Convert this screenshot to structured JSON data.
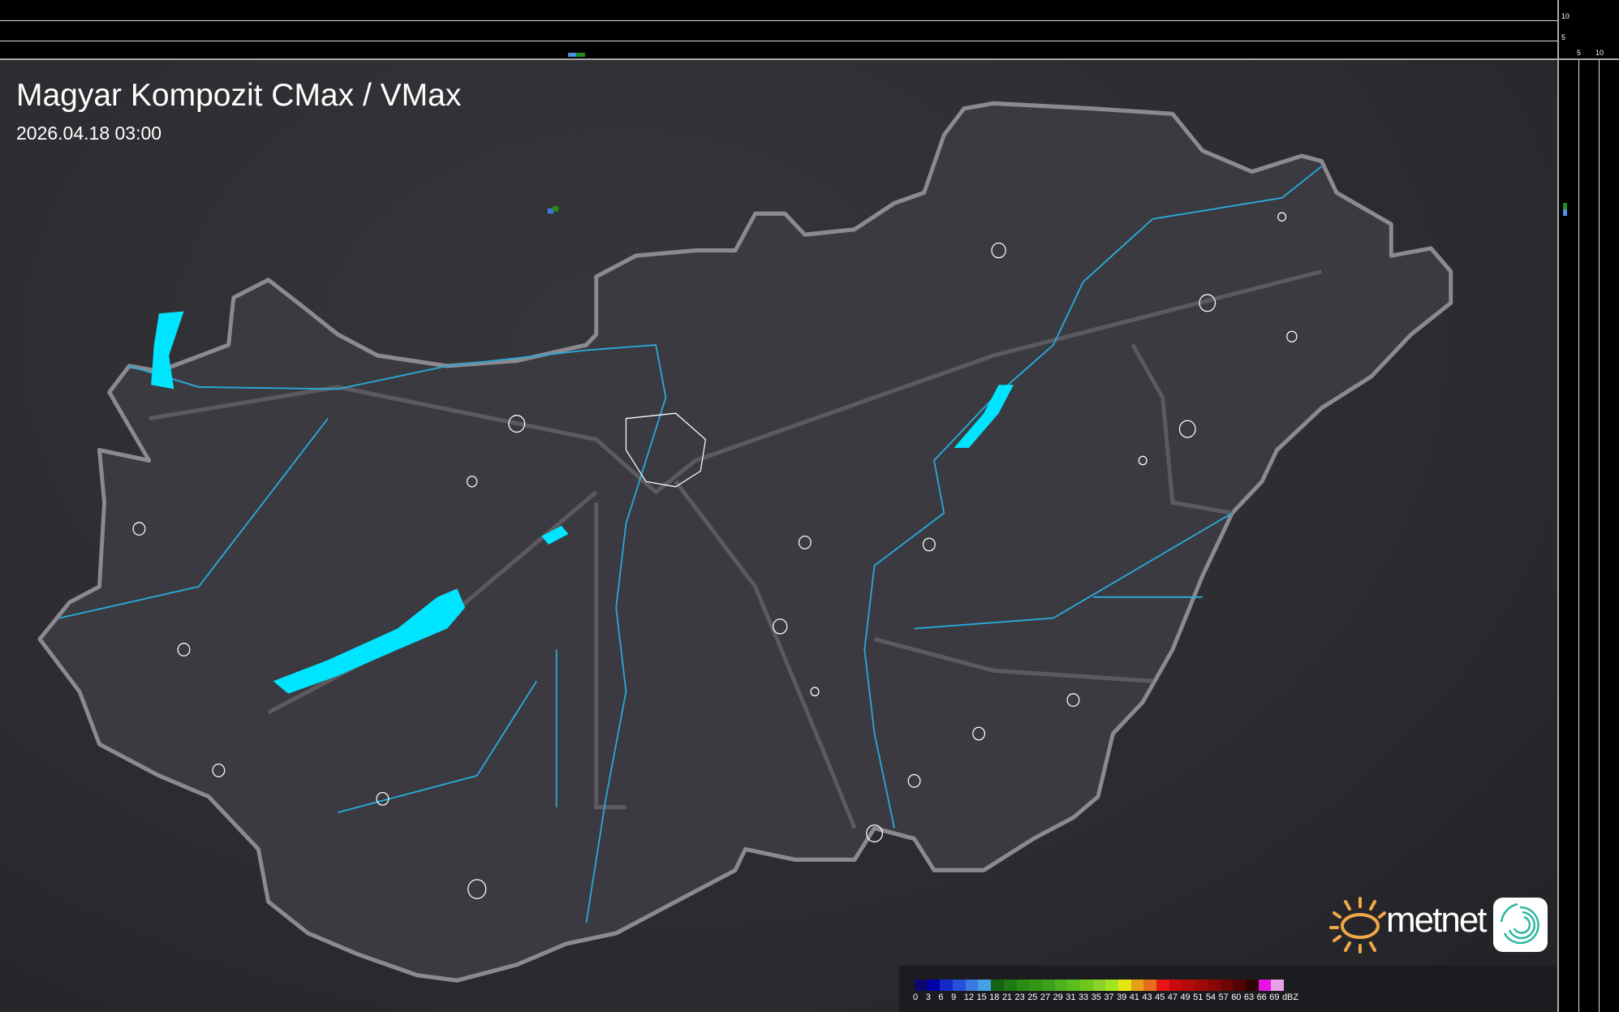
{
  "header": {
    "title": "Magyar Kompozit CMax / VMax",
    "timestamp": "2026.04.18 03:00"
  },
  "profile_axes": {
    "top_labels": [
      "10",
      "5"
    ],
    "right_labels": [
      "5",
      "10"
    ]
  },
  "logo": {
    "brand": "metnet"
  },
  "legend": {
    "unit": "dBZ",
    "labels": [
      "0",
      "3",
      "6",
      "9",
      "12",
      "15",
      "18",
      "21",
      "23",
      "25",
      "27",
      "29",
      "31",
      "33",
      "35",
      "37",
      "39",
      "41",
      "43",
      "45",
      "47",
      "49",
      "51",
      "54",
      "57",
      "60",
      "63",
      "66",
      "69"
    ],
    "colors": [
      "#0a0a6e",
      "#0000a8",
      "#1428c8",
      "#2850dc",
      "#3c78e0",
      "#46a0e6",
      "#146414",
      "#1e7814",
      "#288c14",
      "#329614",
      "#3ca01e",
      "#50b01e",
      "#5abe1e",
      "#6ec81e",
      "#8cd228",
      "#a0e61e",
      "#e6e614",
      "#e6a014",
      "#e66e1e",
      "#e61414",
      "#c80a0a",
      "#b40a0a",
      "#a00a0a",
      "#8c0808",
      "#6e0606",
      "#500404",
      "#300303",
      "#e614e6",
      "#e6a0e6",
      "#8ce6e6"
    ]
  },
  "colors": {
    "country_fill": "#3a3a40",
    "border": "#8a8a90",
    "river": "#2aa8d8",
    "lake": "#00e5ff",
    "city_outline": "#ffffff"
  }
}
